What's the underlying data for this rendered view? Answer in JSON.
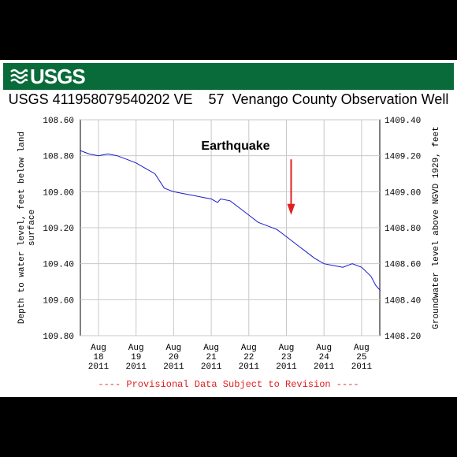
{
  "header": {
    "logo_text": "USGS",
    "title": "USGS 411958079540202 VE    57  Venango County Observation Well"
  },
  "colors": {
    "banner": "#0a6b3a",
    "line": "#1a1acc",
    "arrow": "#e02020",
    "footer": "#e02020"
  },
  "chart_data": {
    "type": "line",
    "title": "USGS 411958079540202 VE    57  Venango County Observation Well",
    "ylabel": "Depth to water level, feet below land surface",
    "ylabel_right": "Groundwater level above NGVD 1929, feet",
    "ylim": [
      108.6,
      109.8
    ],
    "ylim_right": [
      1409.4,
      1408.2
    ],
    "y_ticks": [
      "108.60",
      "108.80",
      "109.00",
      "109.20",
      "109.40",
      "109.60",
      "109.80"
    ],
    "y_ticks_right": [
      "1409.40",
      "1409.20",
      "1409.00",
      "1408.80",
      "1408.60",
      "1408.40",
      "1408.20"
    ],
    "x_ticks": [
      {
        "line1": "Aug",
        "line2": "18",
        "line3": "2011"
      },
      {
        "line1": "Aug",
        "line2": "19",
        "line3": "2011"
      },
      {
        "line1": "Aug",
        "line2": "20",
        "line3": "2011"
      },
      {
        "line1": "Aug",
        "line2": "21",
        "line3": "2011"
      },
      {
        "line1": "Aug",
        "line2": "22",
        "line3": "2011"
      },
      {
        "line1": "Aug",
        "line2": "23",
        "line3": "2011"
      },
      {
        "line1": "Aug",
        "line2": "24",
        "line3": "2011"
      },
      {
        "line1": "Aug",
        "line2": "25",
        "line3": "2011"
      }
    ],
    "xlim": [
      "2011-08-17T12:00",
      "2011-08-25T15:00"
    ],
    "series": [
      {
        "x": [
          "2011-08-17T12:00",
          "2011-08-17T15:00",
          "2011-08-17T18:00",
          "2011-08-18T00:00",
          "2011-08-18T06:00",
          "2011-08-18T12:00",
          "2011-08-18T18:00",
          "2011-08-19T00:00",
          "2011-08-19T06:00",
          "2011-08-19T12:00",
          "2011-08-19T18:00",
          "2011-08-20T00:00",
          "2011-08-20T06:00",
          "2011-08-20T12:00",
          "2011-08-20T18:00",
          "2011-08-21T00:00",
          "2011-08-21T04:00",
          "2011-08-21T06:00",
          "2011-08-21T12:00",
          "2011-08-21T18:00",
          "2011-08-22T00:00",
          "2011-08-22T06:00",
          "2011-08-22T12:00",
          "2011-08-22T18:00",
          "2011-08-23T00:00",
          "2011-08-23T06:00",
          "2011-08-23T12:00",
          "2011-08-23T18:00",
          "2011-08-24T00:00",
          "2011-08-24T06:00",
          "2011-08-24T12:00",
          "2011-08-24T18:00",
          "2011-08-25T00:00",
          "2011-08-25T06:00",
          "2011-08-25T09:00",
          "2011-08-25T12:00"
        ],
        "y": [
          108.77,
          108.78,
          108.79,
          108.8,
          108.79,
          108.8,
          108.82,
          108.84,
          108.87,
          108.9,
          108.98,
          109.0,
          109.01,
          109.02,
          109.03,
          109.04,
          109.06,
          109.04,
          109.05,
          109.09,
          109.13,
          109.17,
          109.19,
          109.21,
          109.25,
          109.29,
          109.33,
          109.37,
          109.4,
          109.41,
          109.42,
          109.4,
          109.42,
          109.47,
          109.52,
          109.55
        ]
      }
    ],
    "annotations": [
      {
        "text": "Earthquake",
        "x": "2011-08-23T03:00",
        "arrow_from": 108.82,
        "arrow_to": 109.12
      }
    ],
    "footer": "---- Provisional Data Subject to Revision ----",
    "grid": true
  }
}
